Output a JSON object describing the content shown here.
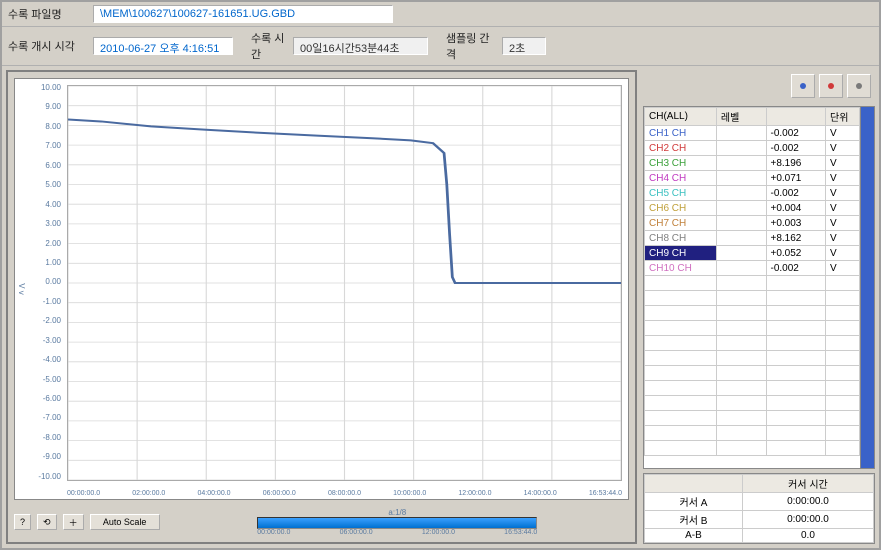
{
  "header": {
    "filename_label": "수록 파일명",
    "filename_value": "\\MEM\\100627\\100627-161651.UG.GBD",
    "start_label": "수록 개시 시각",
    "start_value": "2010-06-27 오후 4:16:51",
    "duration_label": "수록 시간",
    "duration_value": "00일16시간53분44초",
    "interval_label": "샘플링 간격",
    "interval_value": "2초"
  },
  "chart": {
    "y_ticks": [
      "10.00",
      "9.00",
      "8.00",
      "7.00",
      "6.00",
      "5.00",
      "4.00",
      "3.00",
      "2.00",
      "1.00",
      "0.00",
      "-1.00",
      "-2.00",
      "-3.00",
      "-4.00",
      "-5.00",
      "-6.00",
      "-7.00",
      "-8.00",
      "-9.00",
      "-10.00"
    ],
    "x_ticks": [
      "00:00:00.0",
      "02:00:00.0",
      "04:00:00.0",
      "06:00:00.0",
      "08:00:00.0",
      "10:00:00.0",
      "12:00:00.0",
      "14:00:00.0",
      "16:53:44.0"
    ],
    "x_unit_label": "a:1/8",
    "y_unit_label": "V  v",
    "line_color": "#4a6aa0",
    "grid_color": "#d8d8d8",
    "background_color": "#ffffff",
    "ylim": [
      -10,
      10
    ],
    "series_points": [
      [
        0.0,
        8.3
      ],
      [
        0.06,
        8.2
      ],
      [
        0.15,
        7.95
      ],
      [
        0.25,
        7.78
      ],
      [
        0.35,
        7.62
      ],
      [
        0.45,
        7.48
      ],
      [
        0.55,
        7.35
      ],
      [
        0.62,
        7.24
      ],
      [
        0.66,
        7.1
      ],
      [
        0.68,
        6.6
      ],
      [
        0.685,
        5.0
      ],
      [
        0.69,
        2.5
      ],
      [
        0.695,
        0.3
      ],
      [
        0.7,
        0.0
      ],
      [
        1.0,
        0.0
      ]
    ],
    "timeline_ticks": [
      "00:00:00.0",
      "06:00:00.0",
      "12:00:00.0",
      "16:53:44.0"
    ]
  },
  "toolbar": {
    "auto_scale_label": "Auto Scale",
    "qmark": "?",
    "icon_a": "⟲",
    "icon_b": "＋"
  },
  "icons": {
    "a_color": "#3a62c8",
    "b_color": "#d03a3a",
    "c_color": "#7a7a7a"
  },
  "channels": {
    "headers": {
      "ch": "CH(ALL)",
      "label": "레벨",
      "unit": "단위"
    },
    "rows": [
      {
        "name": "CH1 CH",
        "label": "",
        "value": "-0.002",
        "unit": "V",
        "color": "#3a62c8"
      },
      {
        "name": "CH2 CH",
        "label": "",
        "value": "-0.002",
        "unit": "V",
        "color": "#d03a3a"
      },
      {
        "name": "CH3 CH",
        "label": "",
        "value": "+8.196",
        "unit": "V",
        "color": "#3aa03a"
      },
      {
        "name": "CH4 CH",
        "label": "",
        "value": "+0.071",
        "unit": "V",
        "color": "#c03ac0"
      },
      {
        "name": "CH5 CH",
        "label": "",
        "value": "-0.002",
        "unit": "V",
        "color": "#3ac0c0"
      },
      {
        "name": "CH6 CH",
        "label": "",
        "value": "+0.004",
        "unit": "V",
        "color": "#c0a03a"
      },
      {
        "name": "CH7 CH",
        "label": "",
        "value": "+0.003",
        "unit": "V",
        "color": "#c0803a"
      },
      {
        "name": "CH8 CH",
        "label": "",
        "value": "+8.162",
        "unit": "V",
        "color": "#808080"
      },
      {
        "name": "CH9 CH",
        "label": "",
        "value": "+0.052",
        "unit": "V",
        "color": "#202080",
        "selected": true
      },
      {
        "name": "CH10 CH",
        "label": "",
        "value": "-0.002",
        "unit": "V",
        "color": "#d070c0"
      }
    ],
    "empty_rows": 12
  },
  "cursor": {
    "header": "커서 시간",
    "a_label": "커서 A",
    "a_value": "0:00:00.0",
    "b_label": "커서 B",
    "b_value": "0:00:00.0",
    "ab_label": "A-B",
    "ab_value": "0.0"
  }
}
